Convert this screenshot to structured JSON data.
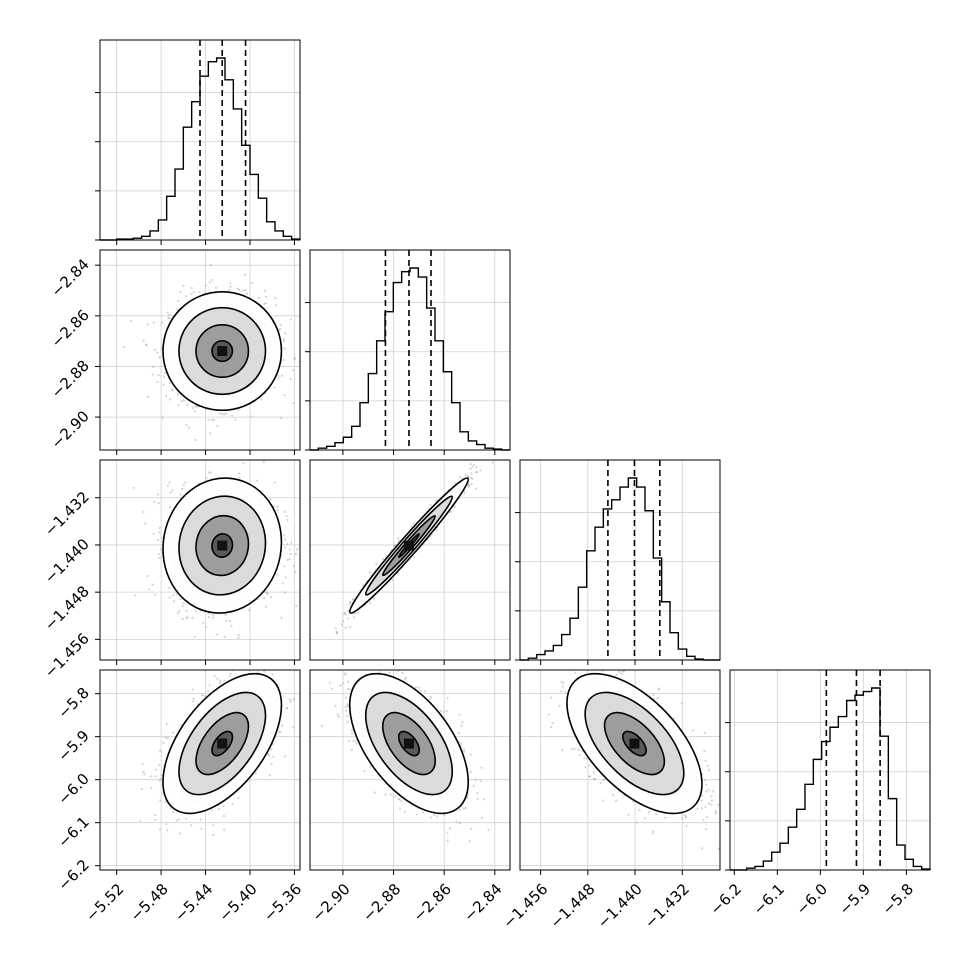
{
  "chart_data": {
    "type": "corner",
    "ticks": [
      [
        "−5.52",
        "−5.48",
        "−5.44",
        "−5.40",
        "−5.36"
      ],
      [
        "−2.90",
        "−2.88",
        "−2.86",
        "−2.84"
      ],
      [
        "−1.456",
        "−1.448",
        "−1.440",
        "−1.432"
      ],
      [
        "−6.2",
        "−6.1",
        "−6.0",
        "−5.9",
        "−5.8"
      ]
    ],
    "parameters": [
      {
        "range": [
          -5.535,
          -5.355
        ],
        "tick_values": [
          -5.52,
          -5.48,
          -5.44,
          -5.4,
          -5.36
        ],
        "histogram": [
          0.0,
          0.0,
          0.005,
          0.005,
          0.01,
          0.02,
          0.05,
          0.11,
          0.24,
          0.39,
          0.62,
          0.76,
          0.9,
          0.98,
          1.0,
          0.88,
          0.72,
          0.52,
          0.36,
          0.23,
          0.1,
          0.05,
          0.02,
          0.005
        ],
        "quantiles": [
          -5.445,
          -5.425,
          -5.404
        ]
      },
      {
        "range": [
          -2.913,
          -2.834
        ],
        "tick_values": [
          -2.9,
          -2.88,
          -2.86,
          -2.84
        ],
        "histogram": [
          0.0,
          0.01,
          0.02,
          0.04,
          0.07,
          0.13,
          0.26,
          0.42,
          0.6,
          0.76,
          0.92,
          0.98,
          1.0,
          0.95,
          0.78,
          0.6,
          0.43,
          0.26,
          0.1,
          0.05,
          0.03,
          0.01,
          0.005,
          0.0
        ],
        "quantiles": [
          -2.8832,
          -2.8739,
          -2.8652
        ]
      },
      {
        "range": [
          -1.4595,
          -1.4256
        ],
        "tick_values": [
          -1.456,
          -1.448,
          -1.44,
          -1.432
        ],
        "histogram": [
          0.0,
          0.01,
          0.03,
          0.05,
          0.08,
          0.14,
          0.23,
          0.4,
          0.6,
          0.73,
          0.83,
          0.88,
          0.95,
          1.0,
          0.95,
          0.82,
          0.56,
          0.32,
          0.15,
          0.06,
          0.02,
          0.005,
          0.0,
          0.0
        ],
        "quantiles": [
          -1.4446,
          -1.4401,
          -1.4358
        ]
      },
      {
        "range": [
          -6.21,
          -5.745
        ],
        "tick_values": [
          -6.2,
          -6.1,
          -6.0,
          -5.9,
          -5.8
        ],
        "histogram": [
          0.0,
          0.0,
          0.01,
          0.02,
          0.05,
          0.1,
          0.15,
          0.24,
          0.34,
          0.48,
          0.62,
          0.72,
          0.8,
          0.86,
          0.95,
          0.98,
          1.0,
          1.02,
          0.75,
          0.4,
          0.14,
          0.06,
          0.02,
          0.005
        ],
        "quantiles": [
          -5.986,
          -5.916,
          -5.861
        ]
      }
    ],
    "correlations": [
      [
        0,
        0,
        0,
        0
      ],
      [
        0.0,
        0,
        0,
        0
      ],
      [
        0.05,
        0.98,
        0,
        0
      ],
      [
        0.55,
        -0.55,
        -0.58,
        0
      ]
    ],
    "grid": true,
    "colors": {
      "hist": "#000000",
      "contour": "#000000",
      "points": "#9e9e9e",
      "grid": "#d0d0d0"
    }
  }
}
